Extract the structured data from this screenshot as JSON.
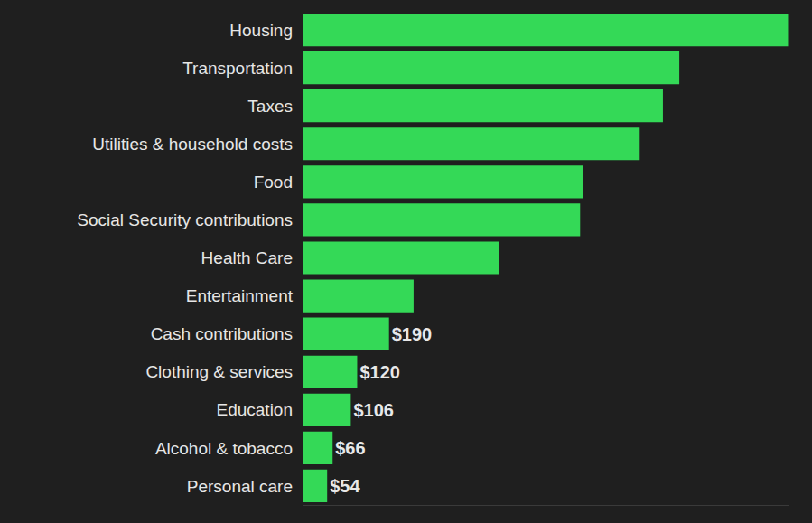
{
  "chart_data": {
    "type": "bar",
    "orientation": "horizontal",
    "categories": [
      "Housing",
      "Transportation",
      "Taxes",
      "Utilities & household costs",
      "Food",
      "Social Security contributions",
      "Health Care",
      "Entertainment",
      "Cash contributions",
      "Clothing & services",
      "Education",
      "Alcohol & tobacco",
      "Personal care"
    ],
    "values": [
      1067,
      828,
      792,
      741,
      616,
      610,
      432,
      244,
      190,
      120,
      106,
      66,
      54
    ],
    "value_labels": [
      null,
      null,
      null,
      null,
      null,
      null,
      null,
      null,
      "$190",
      "$120",
      "$106",
      "$66",
      "$54"
    ],
    "data_labels": true,
    "color": "#34d957",
    "xlim": [
      0,
      1070
    ],
    "xticks": [],
    "tick_labels": "y",
    "grid": false
  }
}
